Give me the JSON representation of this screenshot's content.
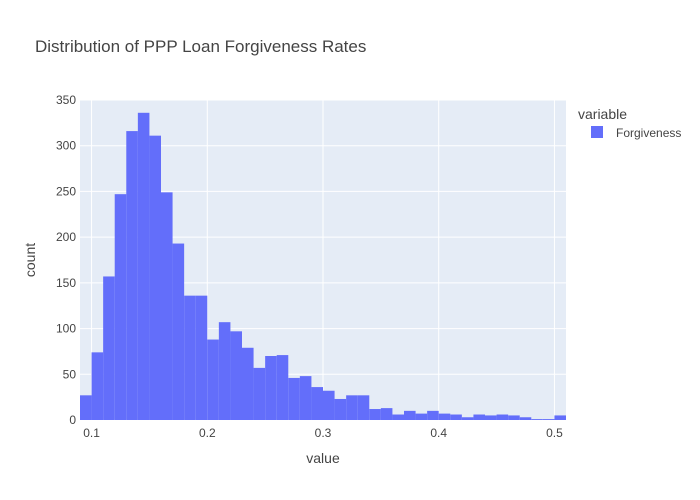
{
  "chart_data": {
    "type": "bar",
    "title": "Distribution of PPP Loan Forgiveness Rates",
    "xlabel": "value",
    "ylabel": "count",
    "xlim": [
      0.09,
      0.51
    ],
    "ylim": [
      0,
      350
    ],
    "bin_width": 0.01,
    "bin_start": 0.09,
    "xticks": [
      0.1,
      0.2,
      0.3,
      0.4,
      0.5
    ],
    "xtick_labels": [
      "0.1",
      "0.2",
      "0.3",
      "0.4",
      "0.5"
    ],
    "yticks": [
      0,
      50,
      100,
      150,
      200,
      250,
      300,
      350
    ],
    "ytick_labels": [
      "0",
      "50",
      "100",
      "150",
      "200",
      "250",
      "300",
      "350"
    ],
    "grid": true,
    "legend": {
      "title": "variable",
      "placement": "right"
    },
    "series": [
      {
        "name": "Forgiveness",
        "color": "#636efa",
        "values": [
          27,
          74,
          157,
          247,
          316,
          336,
          311,
          249,
          193,
          136,
          136,
          88,
          107,
          97,
          79,
          57,
          70,
          71,
          46,
          48,
          36,
          32,
          23,
          27,
          27,
          12,
          13,
          6,
          10,
          7,
          10,
          7,
          6,
          3,
          6,
          5,
          6,
          5,
          3,
          1,
          1,
          5
        ]
      }
    ]
  },
  "colors": {
    "plot_background": "#e5ecf6",
    "gridline": "#ffffff",
    "text": "#444444"
  }
}
